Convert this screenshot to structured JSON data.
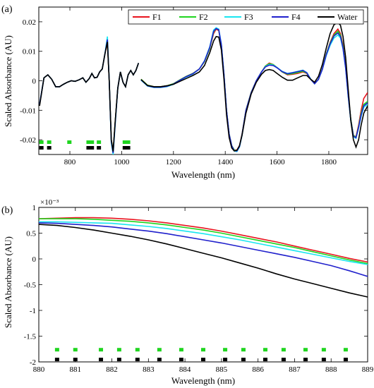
{
  "chart_data": [
    {
      "type": "line",
      "panel_label": "(a)",
      "xlabel": "Wavelength (nm)",
      "ylabel": "Scaled Absorbance (AU)",
      "xlim": [
        680,
        1950
      ],
      "ylim": [
        -0.025,
        0.025
      ],
      "xticks": [
        800,
        1000,
        1200,
        1400,
        1600,
        1800
      ],
      "xtick_labels": [
        "800",
        "1000",
        "1200",
        "1400",
        "1600",
        "1800"
      ],
      "yticks": [
        -0.02,
        -0.01,
        0,
        0.01,
        0.02
      ],
      "ytick_labels": [
        "-0.02",
        "-0.01",
        "0",
        "0.01",
        "0.02"
      ],
      "legend_position": "top-right",
      "segments": [
        {
          "x": [
            683,
            700,
            715,
            730,
            745,
            760,
            775,
            790,
            805,
            820,
            835,
            850,
            862,
            875,
            885,
            895,
            905,
            915,
            925,
            935,
            945,
            952,
            960,
            967,
            975,
            985,
            995,
            1005,
            1015,
            1025,
            1035,
            1045,
            1055,
            1065
          ]
        },
        {
          "x": [
            1075,
            1100,
            1125,
            1150,
            1175,
            1200,
            1225,
            1250,
            1275,
            1300,
            1320,
            1340,
            1355,
            1365,
            1375,
            1385,
            1395,
            1405,
            1415,
            1425,
            1435,
            1445,
            1455,
            1465,
            1480,
            1500,
            1520,
            1540,
            1555,
            1570,
            1585,
            1600,
            1620,
            1640,
            1660,
            1680,
            1700,
            1715,
            1730,
            1745,
            1760,
            1775,
            1790,
            1805,
            1820,
            1835,
            1845,
            1855,
            1865,
            1875,
            1885,
            1895,
            1905,
            1915,
            1925,
            1935,
            1950
          ]
        }
      ],
      "series": [
        {
          "name": "F1",
          "color": "#e8141e",
          "segments": [
            [
              -0.008,
              0.001,
              0.002,
              0.0005,
              -0.002,
              -0.002,
              -0.0012,
              -0.0005,
              0,
              -0.0002,
              0.0003,
              0.001,
              -0.0005,
              0.0008,
              0.0025,
              0.001,
              0.0012,
              0.003,
              0.004,
              0.009,
              0.013,
              0,
              -0.02,
              -0.024,
              -0.014,
              -0.0025,
              0.003,
              -0.0005,
              -0.002,
              0.002,
              0.0035,
              0.002,
              0.0035,
              0.006
            ],
            [
              0.0005,
              -0.0015,
              -0.002,
              -0.002,
              -0.0017,
              -0.001,
              0.0003,
              0.0015,
              0.0025,
              0.004,
              0.0065,
              0.011,
              0.016,
              0.0175,
              0.017,
              0.012,
              0.002,
              -0.01,
              -0.018,
              -0.022,
              -0.0235,
              -0.0235,
              -0.022,
              -0.018,
              -0.01,
              -0.004,
              0,
              0.003,
              0.005,
              0.006,
              0.0055,
              0.0045,
              0.003,
              0.002,
              0.0022,
              0.0025,
              0.003,
              0.0025,
              0.0005,
              -0.001,
              0.0005,
              0.004,
              0.009,
              0.013,
              0.016,
              0.0175,
              0.016,
              0.012,
              0.005,
              -0.005,
              -0.013,
              -0.0185,
              -0.019,
              -0.015,
              -0.01,
              -0.006,
              -0.004
            ]
          ]
        },
        {
          "name": "F2",
          "color": "#1fd51f",
          "segments": [
            [
              -0.008,
              0.001,
              0.002,
              0.0005,
              -0.002,
              -0.002,
              -0.0012,
              -0.0005,
              0,
              -0.0002,
              0.0003,
              0.001,
              -0.0005,
              0.0008,
              0.0025,
              0.001,
              0.0012,
              0.003,
              0.004,
              0.009,
              0.0135,
              0,
              -0.02,
              -0.024,
              -0.014,
              -0.0025,
              0.003,
              -0.0005,
              -0.002,
              0.002,
              0.0035,
              0.002,
              0.0035,
              0.006
            ],
            [
              0.0005,
              -0.0015,
              -0.002,
              -0.002,
              -0.0017,
              -0.001,
              0.0003,
              0.0015,
              0.0025,
              0.004,
              0.0065,
              0.011,
              0.0165,
              0.0178,
              0.0172,
              0.012,
              0.002,
              -0.01,
              -0.018,
              -0.022,
              -0.0235,
              -0.0237,
              -0.0222,
              -0.0182,
              -0.01,
              -0.004,
              0,
              0.003,
              0.005,
              0.0058,
              0.0055,
              0.0045,
              0.003,
              0.0022,
              0.0024,
              0.0028,
              0.0032,
              0.0026,
              0.0005,
              -0.001,
              0.0005,
              0.004,
              0.009,
              0.0128,
              0.0155,
              0.0168,
              0.0155,
              0.0115,
              0.0048,
              -0.005,
              -0.013,
              -0.0185,
              -0.0192,
              -0.0155,
              -0.011,
              -0.008,
              -0.007
            ]
          ]
        },
        {
          "name": "F3",
          "color": "#19e6f0",
          "segments": [
            [
              -0.008,
              0.001,
              0.002,
              0.0005,
              -0.002,
              -0.002,
              -0.0012,
              -0.0005,
              0,
              -0.0002,
              0.0003,
              0.001,
              -0.0005,
              0.0008,
              0.0025,
              0.001,
              0.0012,
              0.003,
              0.004,
              0.009,
              0.015,
              0,
              -0.021,
              -0.025,
              -0.015,
              -0.0025,
              0.003,
              -0.0005,
              -0.002,
              0.002,
              0.0035,
              0.002,
              0.0035,
              0.006
            ],
            [
              0.0002,
              -0.0018,
              -0.0023,
              -0.0023,
              -0.002,
              -0.0012,
              0.0001,
              0.0013,
              0.0023,
              0.004,
              0.0068,
              0.0115,
              0.0172,
              0.018,
              0.0175,
              0.0125,
              0.0022,
              -0.01,
              -0.0182,
              -0.0222,
              -0.0238,
              -0.024,
              -0.0225,
              -0.0185,
              -0.0102,
              -0.0042,
              0,
              0.003,
              0.0048,
              0.0055,
              0.0053,
              0.0045,
              0.0032,
              0.0025,
              0.0028,
              0.0032,
              0.0036,
              0.0028,
              0.0006,
              -0.001,
              0.0005,
              0.0038,
              0.0085,
              0.012,
              0.0145,
              0.0155,
              0.0145,
              0.0108,
              0.0042,
              -0.0055,
              -0.0135,
              -0.019,
              -0.0195,
              -0.016,
              -0.012,
              -0.009,
              -0.008
            ]
          ]
        },
        {
          "name": "F4",
          "color": "#2020cc",
          "segments": [
            [
              -0.008,
              0.001,
              0.002,
              0.0005,
              -0.002,
              -0.002,
              -0.0012,
              -0.0005,
              0,
              -0.0002,
              0.0003,
              0.001,
              -0.0005,
              0.0008,
              0.0025,
              0.001,
              0.0012,
              0.003,
              0.004,
              0.009,
              0.014,
              0,
              -0.0205,
              -0.0245,
              -0.0145,
              -0.0025,
              0.003,
              -0.0005,
              -0.002,
              0.002,
              0.0035,
              0.002,
              0.0035,
              0.006
            ],
            [
              0.0003,
              -0.0017,
              -0.0022,
              -0.0022,
              -0.0019,
              -0.0011,
              0.0002,
              0.0014,
              0.0024,
              0.004,
              0.0067,
              0.0113,
              0.0168,
              0.0177,
              0.0173,
              0.0122,
              0.0021,
              -0.01,
              -0.0181,
              -0.0221,
              -0.0237,
              -0.0238,
              -0.0223,
              -0.0183,
              -0.0101,
              -0.0041,
              0,
              0.003,
              0.0047,
              0.0053,
              0.0052,
              0.0044,
              0.0031,
              0.0024,
              0.0027,
              0.0031,
              0.0035,
              0.0027,
              0.0005,
              -0.001,
              0.0005,
              0.0039,
              0.0088,
              0.0125,
              0.0152,
              0.0162,
              0.015,
              0.011,
              0.0044,
              -0.0052,
              -0.0133,
              -0.0188,
              -0.0193,
              -0.0158,
              -0.0116,
              -0.0085,
              -0.0075
            ]
          ]
        },
        {
          "name": "Water",
          "color": "#000000",
          "segments": [
            [
              -0.0085,
              0.001,
              0.002,
              0.0005,
              -0.002,
              -0.002,
              -0.0012,
              -0.0005,
              0,
              -0.0002,
              0.0003,
              0.001,
              -0.0005,
              0.0008,
              0.0025,
              0.001,
              0.0012,
              0.003,
              0.004,
              0.009,
              0.0132,
              0,
              -0.02,
              -0.024,
              -0.014,
              -0.0025,
              0.003,
              -0.0005,
              -0.002,
              0.002,
              0.0035,
              0.002,
              0.0035,
              0.006
            ],
            [
              0.0004,
              -0.0016,
              -0.002,
              -0.002,
              -0.0017,
              -0.0012,
              -0.0002,
              0.0008,
              0.0018,
              0.003,
              0.0052,
              0.0095,
              0.0135,
              0.015,
              0.0148,
              0.0105,
              0.0005,
              -0.0115,
              -0.0192,
              -0.0228,
              -0.0238,
              -0.0236,
              -0.022,
              -0.0185,
              -0.011,
              -0.0045,
              -0.0005,
              0.0022,
              0.0035,
              0.0038,
              0.0035,
              0.0025,
              0.0012,
              0.0002,
              0.0002,
              0.001,
              0.0018,
              0.0018,
              0.0005,
              -0.0005,
              0.0015,
              0.0055,
              0.011,
              0.016,
              0.019,
              0.0198,
              0.0188,
              0.015,
              0.008,
              -0.003,
              -0.0135,
              -0.02,
              -0.0225,
              -0.02,
              -0.015,
              -0.011,
              -0.0085
            ]
          ]
        }
      ],
      "markers": [
        {
          "color": "#1fd51f",
          "row": "upper",
          "x": [
            690,
            720,
            798,
            872,
            885,
            912,
            1012,
            1025
          ]
        },
        {
          "color": "#000000",
          "row": "lower",
          "x": [
            690,
            720,
            872,
            885,
            912,
            1012,
            1025
          ]
        }
      ]
    },
    {
      "type": "line",
      "panel_label": "(b)",
      "xlabel": "Wavelength (nm)",
      "ylabel": "Scaled Absorbance (AU)",
      "ymultiplier": "×10⁻³",
      "xlim": [
        880,
        889
      ],
      "ylim": [
        -2,
        1
      ],
      "xticks": [
        880,
        881,
        882,
        883,
        884,
        885,
        886,
        887,
        888,
        889
      ],
      "xtick_labels": [
        "880",
        "881",
        "882",
        "883",
        "884",
        "885",
        "886",
        "887",
        "888",
        "889"
      ],
      "yticks": [
        -2,
        -1.5,
        -1,
        -0.5,
        0,
        0.5,
        1
      ],
      "ytick_labels": [
        "-2",
        "-1.5",
        "-1",
        "-0.5",
        "0",
        "0.5",
        "1"
      ],
      "x": [
        880,
        880.5,
        881,
        881.5,
        882,
        882.5,
        883,
        883.5,
        884,
        884.5,
        885,
        885.5,
        886,
        886.5,
        887,
        887.5,
        888,
        888.5,
        889
      ],
      "series": [
        {
          "name": "F1",
          "color": "#e8141e",
          "values": [
            0.78,
            0.79,
            0.8,
            0.8,
            0.79,
            0.77,
            0.74,
            0.7,
            0.65,
            0.6,
            0.54,
            0.47,
            0.4,
            0.33,
            0.25,
            0.17,
            0.09,
            0.01,
            -0.06
          ]
        },
        {
          "name": "F2",
          "color": "#1fd51f",
          "values": [
            0.78,
            0.78,
            0.78,
            0.77,
            0.75,
            0.73,
            0.7,
            0.66,
            0.61,
            0.56,
            0.5,
            0.43,
            0.36,
            0.29,
            0.22,
            0.14,
            0.06,
            -0.02,
            -0.09
          ]
        },
        {
          "name": "F3",
          "color": "#19e6f0",
          "values": [
            0.72,
            0.72,
            0.71,
            0.7,
            0.69,
            0.66,
            0.63,
            0.59,
            0.54,
            0.49,
            0.43,
            0.37,
            0.3,
            0.23,
            0.16,
            0.09,
            0.02,
            -0.05,
            -0.11
          ]
        },
        {
          "name": "F4",
          "color": "#2020cc",
          "values": [
            0.7,
            0.69,
            0.67,
            0.65,
            0.62,
            0.58,
            0.54,
            0.49,
            0.43,
            0.37,
            0.31,
            0.24,
            0.17,
            0.1,
            0.03,
            -0.05,
            -0.13,
            -0.23,
            -0.34
          ]
        },
        {
          "name": "Water",
          "color": "#000000",
          "values": [
            0.67,
            0.65,
            0.61,
            0.56,
            0.5,
            0.44,
            0.37,
            0.29,
            0.2,
            0.11,
            0.02,
            -0.08,
            -0.18,
            -0.29,
            -0.39,
            -0.48,
            -0.57,
            -0.66,
            -0.74
          ]
        }
      ],
      "markers": [
        {
          "color": "#1fd51f",
          "row": "upper",
          "y": -1.77,
          "x": [
            880.5,
            881,
            881.7,
            882.2,
            882.7,
            883.3,
            883.9,
            884.5,
            885.1,
            885.6,
            886.2,
            886.7,
            887.3,
            887.8,
            888.4
          ]
        },
        {
          "color": "#000000",
          "row": "lower",
          "y": -1.96,
          "x": [
            880.5,
            881,
            881.7,
            882.2,
            882.7,
            883.3,
            883.9,
            884.5,
            885.1,
            885.6,
            886.2,
            886.7,
            887.3,
            887.8,
            888.4
          ]
        }
      ]
    }
  ]
}
